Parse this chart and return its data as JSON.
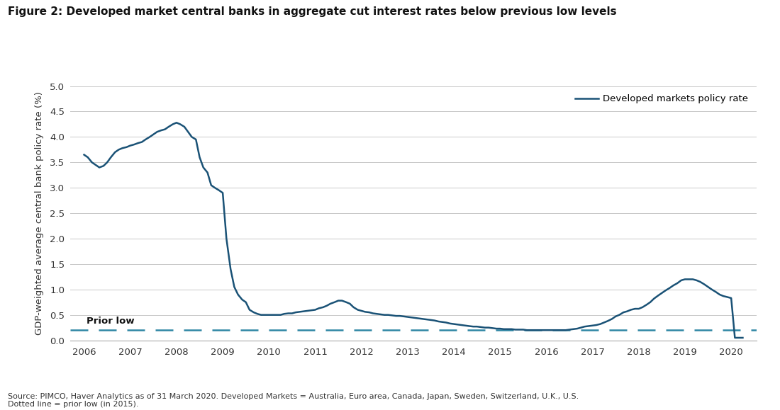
{
  "title": "Figure 2: Developed market central banks in aggregate cut interest rates below previous low levels",
  "ylabel": "GDP-weighted average central bank policy rate (%)",
  "line_color": "#1a5276",
  "dashed_color": "#2e86a4",
  "prior_low_value": 0.2,
  "prior_low_label": "Prior low",
  "legend_label": "Developed markets policy rate",
  "source_text": "Source: PIMCO, Haver Analytics as of 31 March 2020. Developed Markets = Australia, Euro area, Canada, Japan, Sweden, Switzerland, U.K., U.S.\nDotted line = prior low (in 2015).",
  "ylim": [
    0.0,
    5.0
  ],
  "yticks": [
    0.0,
    0.5,
    1.0,
    1.5,
    2.0,
    2.5,
    3.0,
    3.5,
    4.0,
    4.5,
    5.0
  ],
  "xlim_start": 2005.7,
  "xlim_end": 2020.55,
  "xtick_labels": [
    "2006",
    "2007",
    "2008",
    "2009",
    "2010",
    "2011",
    "2012",
    "2013",
    "2014",
    "2015",
    "2016",
    "2017",
    "2018",
    "2019",
    "2020"
  ],
  "xtick_positions": [
    2006,
    2007,
    2008,
    2009,
    2010,
    2011,
    2012,
    2013,
    2014,
    2015,
    2016,
    2017,
    2018,
    2019,
    2020
  ],
  "x": [
    2006.0,
    2006.08,
    2006.17,
    2006.25,
    2006.33,
    2006.42,
    2006.5,
    2006.58,
    2006.67,
    2006.75,
    2006.83,
    2006.92,
    2007.0,
    2007.08,
    2007.17,
    2007.25,
    2007.33,
    2007.42,
    2007.5,
    2007.58,
    2007.67,
    2007.75,
    2007.83,
    2007.92,
    2008.0,
    2008.08,
    2008.17,
    2008.25,
    2008.33,
    2008.42,
    2008.5,
    2008.58,
    2008.67,
    2008.75,
    2008.83,
    2008.92,
    2009.0,
    2009.08,
    2009.17,
    2009.25,
    2009.33,
    2009.42,
    2009.5,
    2009.58,
    2009.67,
    2009.75,
    2009.83,
    2009.92,
    2010.0,
    2010.08,
    2010.17,
    2010.25,
    2010.33,
    2010.42,
    2010.5,
    2010.58,
    2010.67,
    2010.75,
    2010.83,
    2010.92,
    2011.0,
    2011.08,
    2011.17,
    2011.25,
    2011.33,
    2011.42,
    2011.5,
    2011.58,
    2011.67,
    2011.75,
    2011.83,
    2011.92,
    2012.0,
    2012.08,
    2012.17,
    2012.25,
    2012.33,
    2012.42,
    2012.5,
    2012.58,
    2012.67,
    2012.75,
    2012.83,
    2012.92,
    2013.0,
    2013.08,
    2013.17,
    2013.25,
    2013.33,
    2013.42,
    2013.5,
    2013.58,
    2013.67,
    2013.75,
    2013.83,
    2013.92,
    2014.0,
    2014.08,
    2014.17,
    2014.25,
    2014.33,
    2014.42,
    2014.5,
    2014.58,
    2014.67,
    2014.75,
    2014.83,
    2014.92,
    2015.0,
    2015.08,
    2015.17,
    2015.25,
    2015.33,
    2015.42,
    2015.5,
    2015.58,
    2015.67,
    2015.75,
    2015.83,
    2015.92,
    2016.0,
    2016.08,
    2016.17,
    2016.25,
    2016.33,
    2016.42,
    2016.5,
    2016.58,
    2016.67,
    2016.75,
    2016.83,
    2016.92,
    2017.0,
    2017.08,
    2017.17,
    2017.25,
    2017.33,
    2017.42,
    2017.5,
    2017.58,
    2017.67,
    2017.75,
    2017.83,
    2017.92,
    2018.0,
    2018.08,
    2018.17,
    2018.25,
    2018.33,
    2018.42,
    2018.5,
    2018.58,
    2018.67,
    2018.75,
    2018.83,
    2018.92,
    2019.0,
    2019.08,
    2019.17,
    2019.25,
    2019.33,
    2019.42,
    2019.5,
    2019.58,
    2019.67,
    2019.75,
    2019.83,
    2019.92,
    2020.0,
    2020.08,
    2020.17,
    2020.25
  ],
  "y": [
    3.65,
    3.6,
    3.5,
    3.45,
    3.4,
    3.43,
    3.5,
    3.6,
    3.7,
    3.75,
    3.78,
    3.8,
    3.83,
    3.85,
    3.88,
    3.9,
    3.95,
    4.0,
    4.05,
    4.1,
    4.13,
    4.15,
    4.2,
    4.25,
    4.28,
    4.25,
    4.2,
    4.1,
    4.0,
    3.95,
    3.6,
    3.4,
    3.3,
    3.05,
    3.0,
    2.95,
    2.9,
    2.0,
    1.4,
    1.05,
    0.9,
    0.8,
    0.75,
    0.6,
    0.55,
    0.52,
    0.5,
    0.5,
    0.5,
    0.5,
    0.5,
    0.5,
    0.52,
    0.53,
    0.53,
    0.55,
    0.56,
    0.57,
    0.58,
    0.59,
    0.6,
    0.63,
    0.65,
    0.68,
    0.72,
    0.75,
    0.78,
    0.78,
    0.75,
    0.72,
    0.65,
    0.6,
    0.58,
    0.56,
    0.55,
    0.53,
    0.52,
    0.51,
    0.5,
    0.5,
    0.49,
    0.48,
    0.48,
    0.47,
    0.46,
    0.45,
    0.44,
    0.43,
    0.42,
    0.41,
    0.4,
    0.39,
    0.37,
    0.36,
    0.35,
    0.33,
    0.32,
    0.31,
    0.3,
    0.29,
    0.28,
    0.27,
    0.27,
    0.26,
    0.25,
    0.25,
    0.24,
    0.23,
    0.23,
    0.22,
    0.22,
    0.22,
    0.21,
    0.21,
    0.21,
    0.2,
    0.2,
    0.2,
    0.2,
    0.2,
    0.2,
    0.2,
    0.2,
    0.2,
    0.2,
    0.2,
    0.21,
    0.22,
    0.23,
    0.25,
    0.27,
    0.28,
    0.29,
    0.3,
    0.32,
    0.35,
    0.38,
    0.42,
    0.47,
    0.5,
    0.55,
    0.57,
    0.6,
    0.62,
    0.62,
    0.65,
    0.7,
    0.75,
    0.82,
    0.88,
    0.93,
    0.98,
    1.03,
    1.08,
    1.12,
    1.18,
    1.2,
    1.2,
    1.2,
    1.18,
    1.15,
    1.1,
    1.05,
    1.0,
    0.95,
    0.9,
    0.87,
    0.85,
    0.83,
    0.05,
    0.05,
    0.05
  ]
}
